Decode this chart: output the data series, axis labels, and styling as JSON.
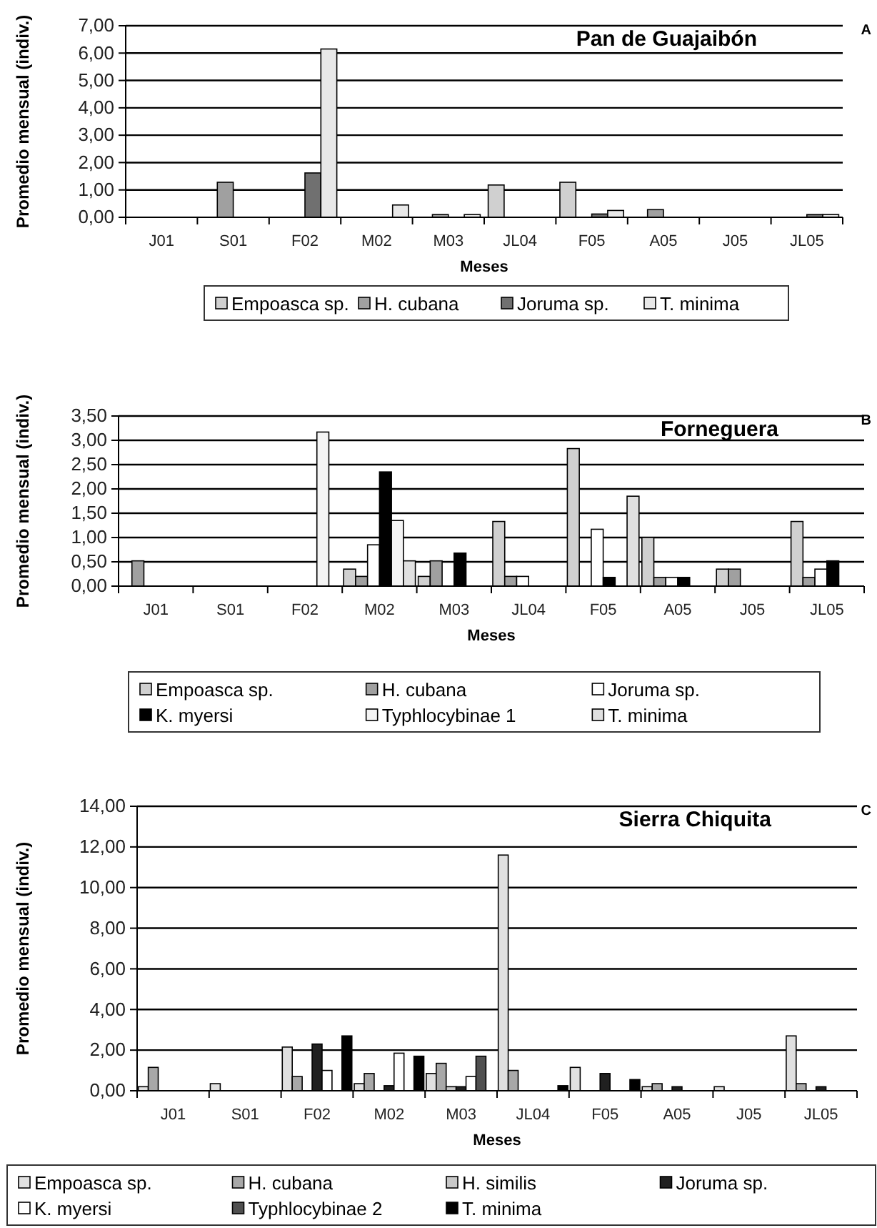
{
  "chart_data": [
    {
      "type": "bar",
      "title": "Pan de Guajaibón",
      "annotations": [
        "A"
      ],
      "xlabel": "Meses",
      "ylabel": "Promedio mensual (indiv.)",
      "categories": [
        "J01",
        "S01",
        "F02",
        "M02",
        "M03",
        "JL04",
        "F05",
        "A05",
        "J05",
        "JL05"
      ],
      "series": [
        {
          "name": "Empoasca sp.",
          "color": "#d0d0d0",
          "values": [
            0,
            0,
            0,
            0,
            0,
            1.18,
            1.28,
            0,
            0,
            0
          ]
        },
        {
          "name": "H. cubana",
          "color": "#a0a0a0",
          "values": [
            0,
            1.28,
            0,
            0,
            0.1,
            0,
            0,
            0.28,
            0,
            0
          ]
        },
        {
          "name": "Joruma sp.",
          "color": "#707070",
          "values": [
            0,
            0,
            1.62,
            0,
            0,
            0,
            0.12,
            0,
            0,
            0.1
          ]
        },
        {
          "name": "T. minima",
          "color": "#e8e8e8",
          "values": [
            0,
            0,
            6.15,
            0.45,
            0.1,
            0,
            0.25,
            0,
            0,
            0.1
          ]
        }
      ],
      "ylim": [
        0,
        7
      ],
      "yticks": [
        {
          "value": 0,
          "label": "0,00"
        },
        {
          "value": 1,
          "label": "1,00"
        },
        {
          "value": 2,
          "label": "2,00"
        },
        {
          "value": 3,
          "label": "3,00"
        },
        {
          "value": 4,
          "label": "4,00"
        },
        {
          "value": 5,
          "label": "5,00"
        },
        {
          "value": 6,
          "label": "6,00"
        },
        {
          "value": 7,
          "label": "7,00"
        }
      ],
      "grid": "y",
      "legend": "bottom"
    },
    {
      "type": "bar",
      "title": "Forneguera",
      "annotations": [
        "B"
      ],
      "xlabel": "Meses",
      "ylabel": "Promedio mensual (indiv.)",
      "categories": [
        "J01",
        "S01",
        "F02",
        "M02",
        "M03",
        "JL04",
        "F05",
        "A05",
        "J05",
        "JL05"
      ],
      "series": [
        {
          "name": "Empoasca sp.",
          "color": "#d0d0d0",
          "values": [
            0,
            0,
            0,
            0.35,
            0.2,
            1.33,
            2.83,
            1.0,
            0.35,
            1.33
          ]
        },
        {
          "name": "H. cubana",
          "color": "#a0a0a0",
          "values": [
            0.52,
            0,
            0,
            0.2,
            0.52,
            0.2,
            0,
            0.18,
            0.35,
            0.18
          ]
        },
        {
          "name": "Joruma sp.",
          "color": "#ffffff",
          "values": [
            0,
            0,
            0,
            0.85,
            0,
            0.2,
            1.17,
            0.18,
            0,
            0.35
          ]
        },
        {
          "name": "K. myersi",
          "color": "#000000",
          "values": [
            0,
            0,
            0,
            2.35,
            0.68,
            0,
            0.18,
            0.18,
            0,
            0.52
          ]
        },
        {
          "name": "Typhlocybinae 1",
          "color": "#f4f4f4",
          "values": [
            0,
            0,
            3.17,
            1.35,
            0,
            0,
            0,
            0,
            0,
            0
          ]
        },
        {
          "name": "T. minima",
          "color": "#e0e0e0",
          "values": [
            0,
            0,
            0,
            0.52,
            0,
            0,
            1.85,
            0,
            0,
            0
          ]
        }
      ],
      "ylim": [
        0,
        3.5
      ],
      "yticks": [
        {
          "value": 0,
          "label": "0,00"
        },
        {
          "value": 0.5,
          "label": "0,50"
        },
        {
          "value": 1,
          "label": "1,00"
        },
        {
          "value": 1.5,
          "label": "1,50"
        },
        {
          "value": 2,
          "label": "2,00"
        },
        {
          "value": 2.5,
          "label": "2,50"
        },
        {
          "value": 3,
          "label": "3,00"
        },
        {
          "value": 3.5,
          "label": "3,50"
        }
      ],
      "grid": "y",
      "legend": "bottom"
    },
    {
      "type": "bar",
      "title": "Sierra Chiquita",
      "annotations": [
        "C"
      ],
      "xlabel": "Meses",
      "ylabel": "Promedio mensual (indiv.)",
      "categories": [
        "J01",
        "S01",
        "F02",
        "M02",
        "M03",
        "JL04",
        "F05",
        "A05",
        "J05",
        "JL05"
      ],
      "series": [
        {
          "name": "Empoasca sp.",
          "color": "#e0e0e0",
          "values": [
            0.2,
            0.35,
            2.15,
            0.35,
            0.85,
            11.6,
            1.15,
            0.2,
            0.2,
            2.7
          ]
        },
        {
          "name": "H. cubana",
          "color": "#a8a8a8",
          "values": [
            1.15,
            0,
            0.7,
            0.85,
            1.35,
            1.0,
            0,
            0.35,
            0,
            0.35
          ]
        },
        {
          "name": "H. similis",
          "color": "#c8c8c8",
          "values": [
            0,
            0,
            0,
            0,
            0.2,
            0,
            0,
            0,
            0,
            0
          ]
        },
        {
          "name": "Joruma sp.",
          "color": "#202020",
          "values": [
            0,
            0,
            2.3,
            0.25,
            0.2,
            0,
            0.85,
            0.2,
            0,
            0.2
          ]
        },
        {
          "name": "K. myersi",
          "color": "#ffffff",
          "values": [
            0,
            0,
            1.0,
            1.85,
            0.7,
            0,
            0,
            0,
            0,
            0
          ]
        },
        {
          "name": "Typhlocybinae 2",
          "color": "#505050",
          "values": [
            0,
            0,
            0,
            0,
            1.7,
            0,
            0,
            0,
            0,
            0
          ]
        },
        {
          "name": "T. minima",
          "color": "#000000",
          "values": [
            0,
            0,
            2.7,
            1.7,
            0,
            0.25,
            0.55,
            0,
            0,
            0
          ]
        }
      ],
      "ylim": [
        0,
        14
      ],
      "yticks": [
        {
          "value": 0,
          "label": "0,00"
        },
        {
          "value": 2,
          "label": "2,00"
        },
        {
          "value": 4,
          "label": "4,00"
        },
        {
          "value": 6,
          "label": "6,00"
        },
        {
          "value": 8,
          "label": "8,00"
        },
        {
          "value": 10,
          "label": "10,00"
        },
        {
          "value": 12,
          "label": "12,00"
        },
        {
          "value": 14,
          "label": "14,00"
        }
      ],
      "grid": "y",
      "legend": "bottom"
    }
  ]
}
